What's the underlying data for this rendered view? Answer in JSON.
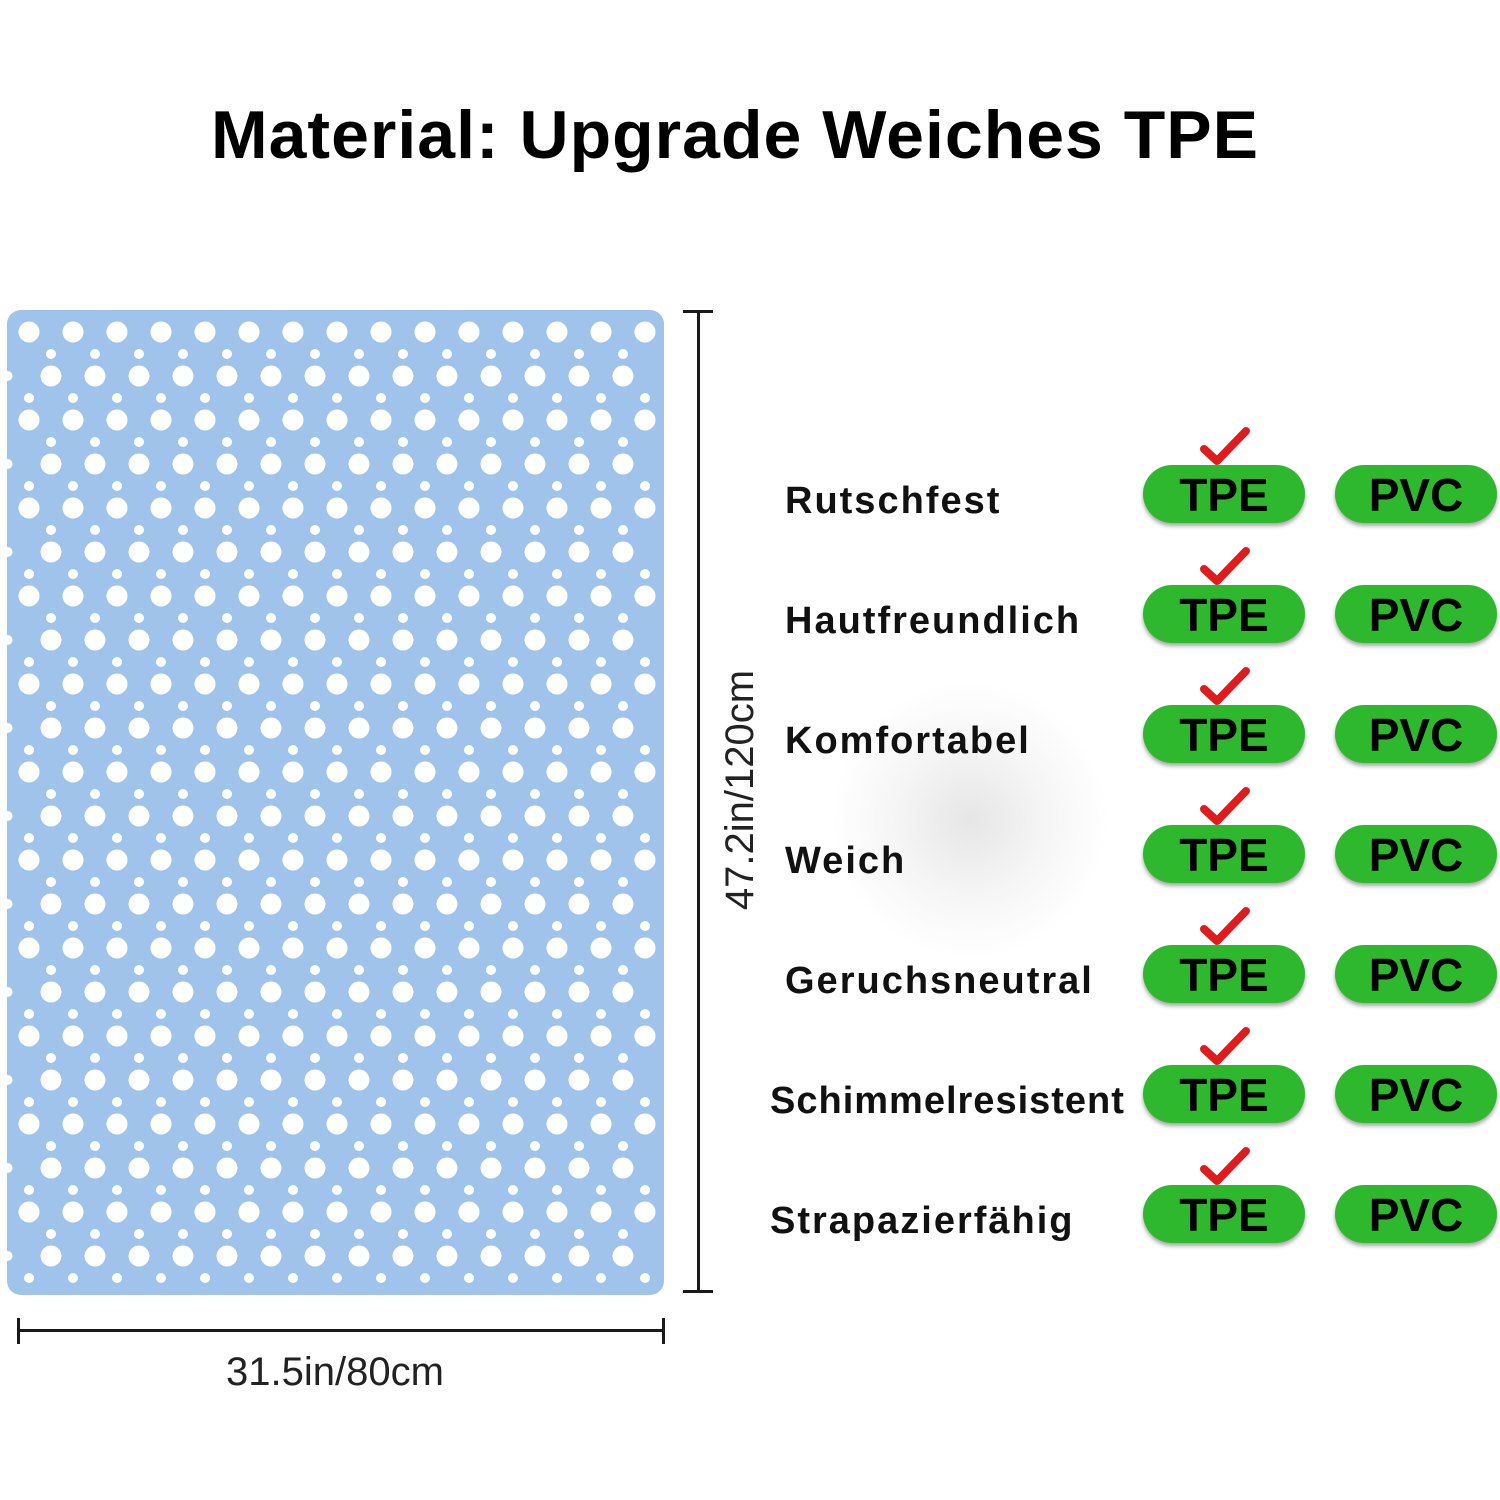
{
  "title": "Material: Upgrade Weiches TPE",
  "dimensions": {
    "height_label": "47.2in/120cm",
    "width_label": "31.5in/80cm"
  },
  "colors": {
    "mat": "#9fc3ea",
    "pill": "#2eb82e",
    "check": "#e01b1b"
  },
  "icons": {
    "check": "check-icon"
  },
  "comparison": [
    {
      "feature": "Rutschfest",
      "options": [
        "TPE",
        "PVC"
      ],
      "checked": "TPE"
    },
    {
      "feature": "Hautfreundlich",
      "options": [
        "TPE",
        "PVC"
      ],
      "checked": "TPE"
    },
    {
      "feature": "Komfortabel",
      "options": [
        "TPE",
        "PVC"
      ],
      "checked": "TPE"
    },
    {
      "feature": "Weich",
      "options": [
        "TPE",
        "PVC"
      ],
      "checked": "TPE"
    },
    {
      "feature": "Geruchsneutral",
      "options": [
        "TPE",
        "PVC"
      ],
      "checked": "TPE"
    },
    {
      "feature": "Schimmelresistent",
      "options": [
        "TPE",
        "PVC"
      ],
      "checked": "TPE"
    },
    {
      "feature": "Strapazierfähig",
      "options": [
        "TPE",
        "PVC"
      ],
      "checked": "TPE"
    }
  ]
}
